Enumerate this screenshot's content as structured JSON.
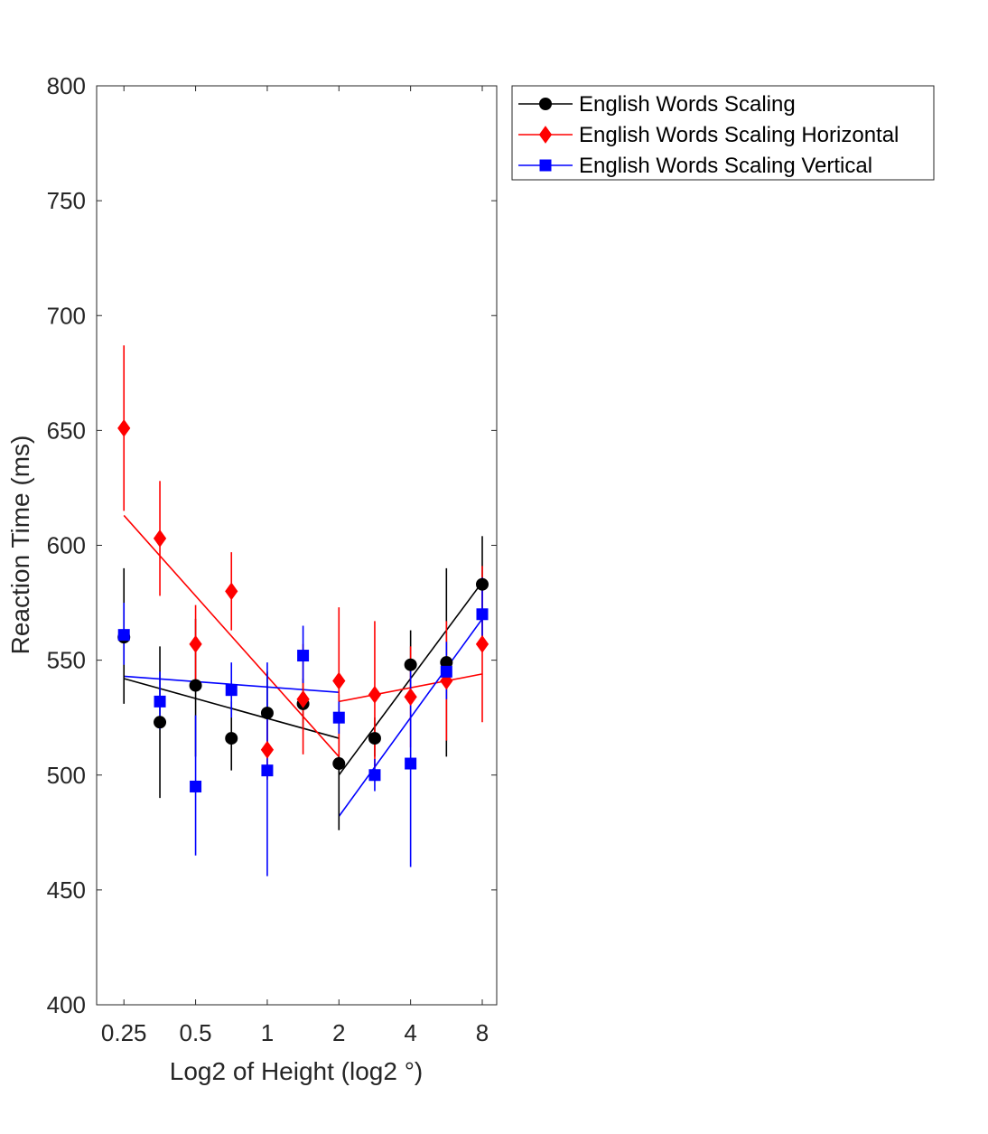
{
  "chart_data": {
    "type": "scatter",
    "title": "",
    "xlabel": "Log2 of Height (log2 °)",
    "ylabel": "Reaction Time (ms)",
    "x_scale": "log2",
    "xlim": [
      0.192,
      9.2
    ],
    "ylim": [
      400,
      800
    ],
    "x_ticks": [
      0.25,
      0.5,
      1,
      2,
      4,
      8
    ],
    "x_tick_labels": [
      "0.25",
      "0.5",
      "1",
      "2",
      "4",
      "8"
    ],
    "y_ticks": [
      400,
      450,
      500,
      550,
      600,
      650,
      700,
      750,
      800
    ],
    "y_tick_labels": [
      "400",
      "450",
      "500",
      "550",
      "600",
      "650",
      "700",
      "750",
      "800"
    ],
    "grid": false,
    "legend_position": "outside-top-right",
    "series": [
      {
        "name": "English Words Scaling",
        "color": "#000000",
        "marker": "circle",
        "x": [
          0.25,
          0.354,
          0.5,
          0.707,
          1,
          1.414,
          2,
          2.828,
          4,
          5.657,
          8
        ],
        "y": [
          560,
          523,
          539,
          516,
          527,
          531,
          505,
          516,
          548,
          549,
          583
        ],
        "err_low": [
          531,
          490,
          508,
          502,
          509,
          520,
          476,
          508,
          536,
          508,
          560
        ],
        "err_high": [
          590,
          556,
          568,
          532,
          545,
          542,
          535,
          525,
          563,
          590,
          604
        ],
        "fit_segments": [
          {
            "x": [
              0.25,
              2
            ],
            "y": [
              542,
              516
            ]
          },
          {
            "x": [
              2,
              8
            ],
            "y": [
              500,
              584
            ]
          }
        ]
      },
      {
        "name": "English Words Scaling Horizontal",
        "color": "#ff0000",
        "marker": "diamond",
        "x": [
          0.25,
          0.354,
          0.5,
          0.707,
          1,
          1.414,
          2,
          2.828,
          4,
          5.657,
          8
        ],
        "y": [
          651,
          603,
          557,
          580,
          511,
          533,
          541,
          535,
          534,
          541,
          557
        ],
        "err_low": [
          615,
          578,
          540,
          563,
          498,
          509,
          508,
          503,
          512,
          515,
          523
        ],
        "err_high": [
          687,
          628,
          574,
          597,
          524,
          557,
          573,
          567,
          556,
          567,
          591
        ],
        "fit_segments": [
          {
            "x": [
              0.25,
              2
            ],
            "y": [
              613,
              508
            ]
          },
          {
            "x": [
              2,
              8
            ],
            "y": [
              532,
              544
            ]
          }
        ]
      },
      {
        "name": "English Words Scaling Vertical",
        "color": "#0000ff",
        "marker": "square",
        "x": [
          0.25,
          0.354,
          0.5,
          0.707,
          1,
          1.414,
          2,
          2.828,
          4,
          5.657,
          8
        ],
        "y": [
          561,
          532,
          495,
          537,
          502,
          552,
          525,
          500,
          505,
          545,
          570
        ],
        "err_low": [
          548,
          520,
          465,
          525,
          456,
          540,
          518,
          493,
          460,
          533,
          555
        ],
        "err_high": [
          575,
          545,
          526,
          549,
          549,
          565,
          532,
          507,
          550,
          558,
          586
        ],
        "fit_segments": [
          {
            "x": [
              0.25,
              2
            ],
            "y": [
              543,
              536
            ]
          },
          {
            "x": [
              2,
              8
            ],
            "y": [
              482,
              568
            ]
          }
        ]
      }
    ]
  }
}
